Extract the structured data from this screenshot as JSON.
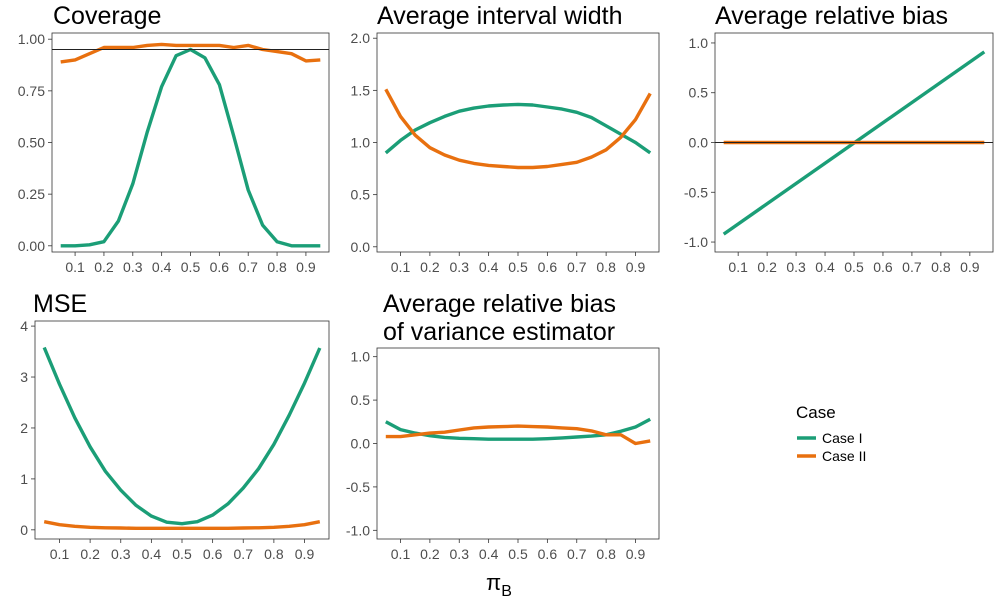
{
  "figure": {
    "x_label": "π",
    "x_label_sub": "B",
    "legend": {
      "title": "Case",
      "entries": [
        {
          "name": "Case I",
          "color": "#1b9e77"
        },
        {
          "name": "Case II",
          "color": "#e8700f"
        }
      ]
    }
  },
  "chart_data": [
    {
      "id": "coverage",
      "type": "line",
      "title": [
        "Coverage"
      ],
      "xlim": [
        0.02,
        0.98
      ],
      "ylim": [
        -0.03,
        1.03
      ],
      "x_ticks": [
        "0.1",
        "0.2",
        "0.3",
        "0.4",
        "0.5",
        "0.6",
        "0.7",
        "0.8",
        "0.9"
      ],
      "y_ticks": [
        "0.00",
        "0.25",
        "0.50",
        "0.75",
        "1.00"
      ],
      "reference_line": 0.95,
      "x": [
        0.05,
        0.1,
        0.15,
        0.2,
        0.25,
        0.3,
        0.35,
        0.4,
        0.45,
        0.5,
        0.55,
        0.6,
        0.65,
        0.7,
        0.75,
        0.8,
        0.85,
        0.9,
        0.95
      ],
      "series": [
        {
          "name": "Case I",
          "values": [
            0.0,
            0.0,
            0.005,
            0.02,
            0.12,
            0.3,
            0.55,
            0.77,
            0.92,
            0.95,
            0.91,
            0.78,
            0.53,
            0.27,
            0.1,
            0.02,
            0.0,
            0.0,
            0.0
          ]
        },
        {
          "name": "Case II",
          "values": [
            0.89,
            0.9,
            0.93,
            0.96,
            0.96,
            0.96,
            0.97,
            0.975,
            0.97,
            0.97,
            0.97,
            0.97,
            0.96,
            0.97,
            0.95,
            0.94,
            0.93,
            0.895,
            0.9
          ]
        }
      ]
    },
    {
      "id": "width",
      "type": "line",
      "title": [
        "Average interval width"
      ],
      "xlim": [
        0.02,
        0.98
      ],
      "ylim": [
        -0.05,
        2.05
      ],
      "x_ticks": [
        "0.1",
        "0.2",
        "0.3",
        "0.4",
        "0.5",
        "0.6",
        "0.7",
        "0.8",
        "0.9"
      ],
      "y_ticks": [
        "0.0",
        "0.5",
        "1.0",
        "1.5",
        "2.0"
      ],
      "x": [
        0.05,
        0.1,
        0.15,
        0.2,
        0.25,
        0.3,
        0.35,
        0.4,
        0.45,
        0.5,
        0.55,
        0.6,
        0.65,
        0.7,
        0.75,
        0.8,
        0.85,
        0.9,
        0.95
      ],
      "series": [
        {
          "name": "Case I",
          "values": [
            0.9,
            1.02,
            1.12,
            1.19,
            1.25,
            1.3,
            1.33,
            1.35,
            1.36,
            1.365,
            1.36,
            1.34,
            1.32,
            1.29,
            1.24,
            1.16,
            1.08,
            1.0,
            0.9
          ]
        },
        {
          "name": "Case II",
          "values": [
            1.51,
            1.25,
            1.07,
            0.95,
            0.88,
            0.83,
            0.8,
            0.78,
            0.77,
            0.76,
            0.76,
            0.77,
            0.79,
            0.81,
            0.86,
            0.93,
            1.05,
            1.22,
            1.47
          ]
        }
      ]
    },
    {
      "id": "bias",
      "type": "line",
      "title": [
        "Average relative bias"
      ],
      "xlim": [
        0.02,
        0.98
      ],
      "ylim": [
        -1.1,
        1.1
      ],
      "x_ticks": [
        "0.1",
        "0.2",
        "0.3",
        "0.4",
        "0.5",
        "0.6",
        "0.7",
        "0.8",
        "0.9"
      ],
      "y_ticks": [
        "-1.0",
        "-0.5",
        "0.0",
        "0.5",
        "1.0"
      ],
      "reference_line": 0.0,
      "x": [
        0.05,
        0.95
      ],
      "series": [
        {
          "name": "Case I",
          "values": [
            -0.92,
            0.91
          ]
        },
        {
          "name": "Case II",
          "values": [
            0.0,
            0.0
          ]
        }
      ]
    },
    {
      "id": "mse",
      "type": "line",
      "title": [
        "MSE"
      ],
      "xlim": [
        0.02,
        0.98
      ],
      "ylim": [
        -0.18,
        4.1
      ],
      "x_ticks": [
        "0.1",
        "0.2",
        "0.3",
        "0.4",
        "0.5",
        "0.6",
        "0.7",
        "0.8",
        "0.9"
      ],
      "y_ticks": [
        "0",
        "1",
        "2",
        "3",
        "4"
      ],
      "x": [
        0.05,
        0.1,
        0.15,
        0.2,
        0.25,
        0.3,
        0.35,
        0.4,
        0.45,
        0.5,
        0.55,
        0.6,
        0.65,
        0.7,
        0.75,
        0.8,
        0.85,
        0.9,
        0.95
      ],
      "series": [
        {
          "name": "Case I",
          "values": [
            3.58,
            2.86,
            2.2,
            1.63,
            1.15,
            0.78,
            0.48,
            0.27,
            0.15,
            0.12,
            0.16,
            0.29,
            0.51,
            0.82,
            1.2,
            1.68,
            2.25,
            2.88,
            3.57
          ]
        },
        {
          "name": "Case II",
          "values": [
            0.16,
            0.1,
            0.07,
            0.05,
            0.04,
            0.035,
            0.03,
            0.03,
            0.03,
            0.03,
            0.03,
            0.03,
            0.03,
            0.035,
            0.04,
            0.05,
            0.07,
            0.1,
            0.16
          ]
        }
      ]
    },
    {
      "id": "varbias",
      "type": "line",
      "title": [
        "Average relative bias",
        "of variance estimator"
      ],
      "xlim": [
        0.02,
        0.98
      ],
      "ylim": [
        -1.1,
        1.1
      ],
      "x_ticks": [
        "0.1",
        "0.2",
        "0.3",
        "0.4",
        "0.5",
        "0.6",
        "0.7",
        "0.8",
        "0.9"
      ],
      "y_ticks": [
        "-1.0",
        "-0.5",
        "0.0",
        "0.5",
        "1.0"
      ],
      "x": [
        0.05,
        0.1,
        0.15,
        0.2,
        0.25,
        0.3,
        0.35,
        0.4,
        0.45,
        0.5,
        0.55,
        0.6,
        0.65,
        0.7,
        0.75,
        0.8,
        0.85,
        0.9,
        0.95
      ],
      "series": [
        {
          "name": "Case I",
          "values": [
            0.25,
            0.16,
            0.12,
            0.09,
            0.07,
            0.06,
            0.055,
            0.05,
            0.05,
            0.05,
            0.05,
            0.055,
            0.065,
            0.075,
            0.085,
            0.1,
            0.14,
            0.19,
            0.28
          ]
        },
        {
          "name": "Case II",
          "values": [
            0.08,
            0.08,
            0.1,
            0.12,
            0.13,
            0.155,
            0.18,
            0.19,
            0.195,
            0.2,
            0.195,
            0.19,
            0.18,
            0.17,
            0.145,
            0.1,
            0.1,
            0.0,
            0.03
          ]
        }
      ]
    }
  ]
}
